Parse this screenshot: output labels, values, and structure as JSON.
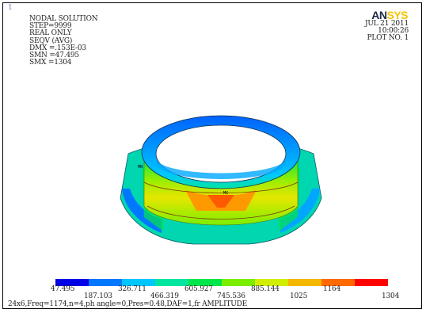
{
  "window": {
    "marker": "1",
    "logo_left": "AN",
    "logo_right": "SYS"
  },
  "info": {
    "lines": [
      "NODAL SOLUTION",
      "STEP=9999",
      "REAL ONLY",
      "SEQV     (AVG)",
      "DMX =.153E-03",
      "SMN =47.495",
      "SMX =1304"
    ]
  },
  "datetime": {
    "date": "JUL 21 2011",
    "time": "10:00:26",
    "plot": "PLOT NO.   1"
  },
  "model": {
    "min_label": "MN",
    "max_label": "MX"
  },
  "legend": {
    "colors": [
      "#0000e6",
      "#0077ff",
      "#00c6ff",
      "#00e6a0",
      "#00e64a",
      "#7bee00",
      "#d2ee00",
      "#f5b800",
      "#ff6a00",
      "#ff0000"
    ],
    "top_labels": [
      "47.495",
      "326.711",
      "605.927",
      "885.144",
      "1164"
    ],
    "bottom_labels": [
      "187.103",
      "466.319",
      "745.536",
      "1025",
      "1304"
    ]
  },
  "caption": "24x6,Freq=1174,n=4,ph angle=0,Pres=0.48,DAF=1,fr  AMPLITUDE"
}
